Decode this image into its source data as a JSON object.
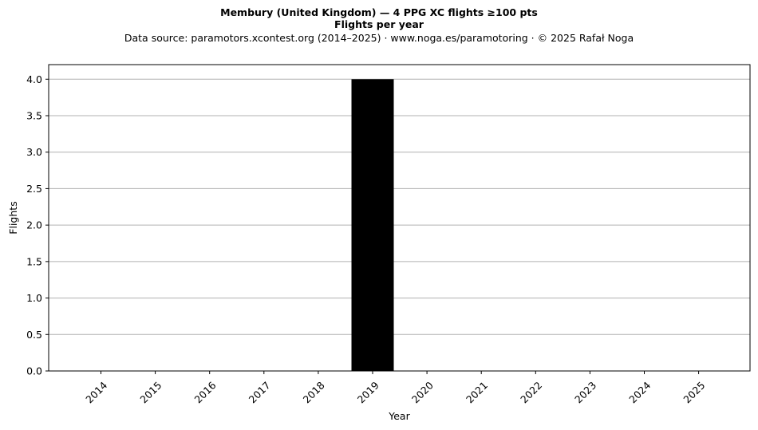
{
  "chart_data": {
    "type": "bar",
    "title": "Membury (United Kingdom)  —  4 PPG XC flights ≥100 pts",
    "title_line2": "Flights per year",
    "subtitle": "Data source: paramotors.xcontest.org (2014–2025)  ·  www.noga.es/paramotoring  ·  © 2025 Rafał Noga",
    "xlabel": "Year",
    "ylabel": "Flights",
    "categories": [
      "2014",
      "2015",
      "2016",
      "2017",
      "2018",
      "2019",
      "2020",
      "2021",
      "2022",
      "2023",
      "2024",
      "2025"
    ],
    "values": [
      0,
      0,
      0,
      0,
      0,
      4,
      0,
      0,
      0,
      0,
      0,
      0
    ],
    "ylim": [
      0,
      4.2
    ],
    "yticks": [
      0,
      0.5,
      1.0,
      1.5,
      2.0,
      2.5,
      3.0,
      3.5,
      4.0
    ],
    "ytick_labels": [
      "0.0",
      "0.5",
      "1.0",
      "1.5",
      "2.0",
      "2.5",
      "3.0",
      "3.5",
      "4.0"
    ],
    "grid": "horizontal",
    "colors": {
      "bar": "#000000",
      "grid": "#b0b0b0",
      "axes": "#000000"
    }
  }
}
